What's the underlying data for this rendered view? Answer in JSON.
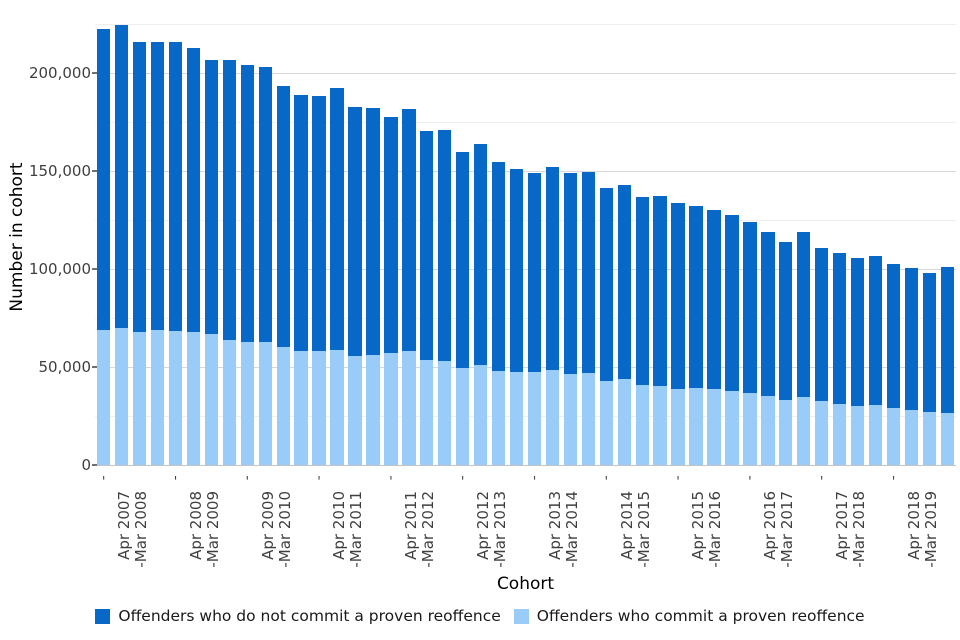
{
  "chart_data": {
    "type": "bar",
    "stacked": true,
    "title": "",
    "xlabel": "Cohort",
    "ylabel": "Number in cohort",
    "ylim": [
      0,
      232000
    ],
    "grid": true,
    "legend_position": "bottom",
    "yticks": [
      {
        "value": 0,
        "label": "0"
      },
      {
        "value": 50000,
        "label": "50,000"
      },
      {
        "value": 100000,
        "label": "100,000"
      },
      {
        "value": 150000,
        "label": "150,000"
      },
      {
        "value": 200000,
        "label": "200,000"
      }
    ],
    "minor_ytick_values": [
      25000,
      75000,
      125000,
      175000,
      225000
    ],
    "minor_x_tick_label": "'",
    "bars_per_category": 4,
    "categories": [
      "Apr 2007 -Mar 2008",
      "Apr 2008 -Mar 2009",
      "Apr 2009 -Mar 2010",
      "Apr 2010 -Mar 2011",
      "Apr 2011 -Mar 2012",
      "Apr 2012 -Mar 2013",
      "Apr 2013 -Mar 2014",
      "Apr 2014 -Mar 2015",
      "Apr 2015 -Mar 2016",
      "Apr 2016 -Mar 2017",
      "Apr 2017 -Mar 2018",
      "Apr 2018 -Mar 2019"
    ],
    "category_label_lines": [
      [
        "Apr 2007",
        "-Mar 2008"
      ],
      [
        "Apr 2008",
        "-Mar 2009"
      ],
      [
        "Apr 2009",
        "-Mar 2010"
      ],
      [
        "Apr 2010",
        "-Mar 2011"
      ],
      [
        "Apr 2011",
        "-Mar 2012"
      ],
      [
        "Apr 2012",
        "-Mar 2013"
      ],
      [
        "Apr 2013",
        "-Mar 2014"
      ],
      [
        "Apr 2014",
        "-Mar 2015"
      ],
      [
        "Apr 2015",
        "-Mar 2016"
      ],
      [
        "Apr 2016",
        "-Mar 2017"
      ],
      [
        "Apr 2017",
        "-Mar 2018"
      ],
      [
        "Apr 2018",
        "-Mar 2019"
      ]
    ],
    "series": [
      {
        "name": "Offenders who do not commit a proven reoffence",
        "color": "#0768C8",
        "stack_order": "top",
        "values": [
          153500,
          154800,
          148000,
          146600,
          147100,
          145000,
          140000,
          142900,
          141600,
          140300,
          133200,
          130500,
          129800,
          133500,
          126600,
          126000,
          120200,
          123200,
          116800,
          117700,
          110200,
          112700,
          106600,
          103400,
          101400,
          103800,
          102600,
          102700,
          98200,
          99100,
          96100,
          97400,
          94800,
          92900,
          91300,
          89900,
          87500,
          84000,
          80600,
          84200,
          77700,
          77000,
          75200,
          76200,
          73600,
          72100,
          70600,
          74400
        ]
      },
      {
        "name": "Offenders who commit a proven reoffence",
        "color": "#9ACCFA",
        "stack_order": "bottom",
        "values": [
          68900,
          69700,
          68000,
          69000,
          68500,
          68000,
          66800,
          63900,
          62600,
          62900,
          60000,
          58300,
          58300,
          58800,
          55800,
          56100,
          57100,
          58300,
          53700,
          53200,
          49300,
          51000,
          48100,
          47600,
          47600,
          48400,
          46400,
          46900,
          43000,
          43900,
          40800,
          40100,
          38800,
          39100,
          38800,
          37600,
          36600,
          35000,
          33300,
          34500,
          32800,
          31100,
          30200,
          30600,
          28900,
          28200,
          27200,
          26400
        ]
      }
    ]
  }
}
